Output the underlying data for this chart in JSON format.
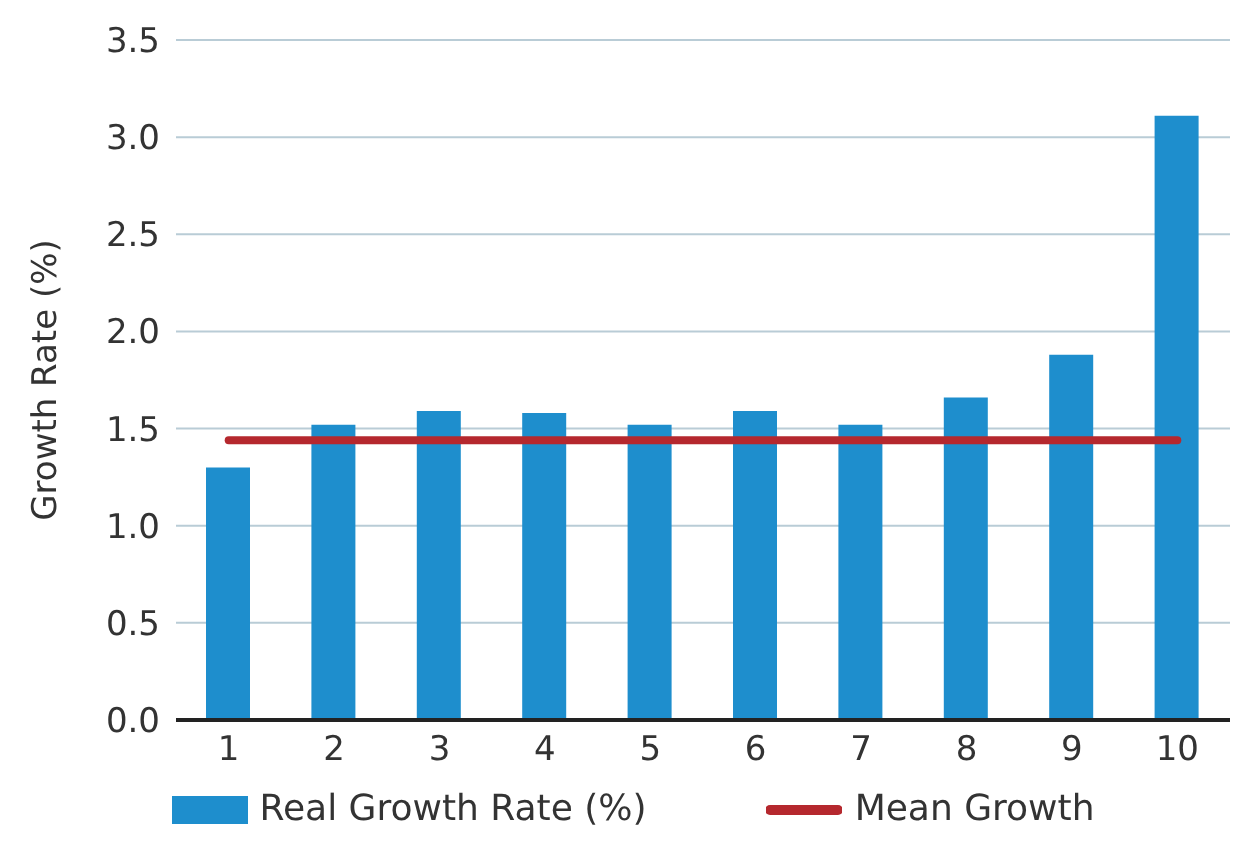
{
  "chart_data": {
    "type": "bar",
    "ylabel": "Growth Rate (%)",
    "categories": [
      "1",
      "2",
      "3",
      "4",
      "5",
      "6",
      "7",
      "8",
      "9",
      "10"
    ],
    "series": [
      {
        "name": "Real Growth Rate (%)",
        "color": "#1e8ecd",
        "values": [
          1.3,
          1.52,
          1.59,
          1.58,
          1.52,
          1.59,
          1.52,
          1.66,
          1.88,
          3.11
        ]
      },
      {
        "name": "Mean Growth",
        "type": "line",
        "color": "#b5282e",
        "values": [
          1.44,
          1.44,
          1.44,
          1.44,
          1.44,
          1.44,
          1.44,
          1.44,
          1.44,
          1.44
        ]
      }
    ],
    "ylim": [
      0,
      3.5
    ],
    "yticks": [
      {
        "value": 0,
        "label": "0.0"
      },
      0.5,
      {
        "value": 1,
        "label": "1.0"
      },
      1.5,
      {
        "value": 2,
        "label": "2.0"
      },
      2.5,
      {
        "value": 3,
        "label": "3.0"
      },
      3.5
    ],
    "grid": "y",
    "legend": "bottom"
  }
}
